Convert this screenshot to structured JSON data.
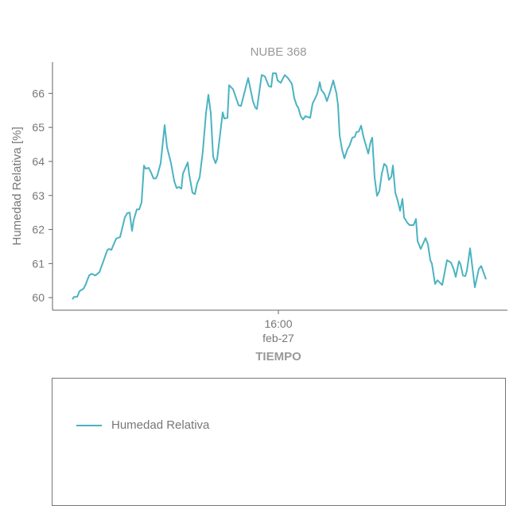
{
  "chart_data": {
    "type": "line",
    "title": "NUBE 368",
    "xlabel": "TIEMPO",
    "ylabel": "Humedad Relativa [%]",
    "x_unit": "minutes relative to 16:00 feb-27",
    "xlim": [
      -710,
      720
    ],
    "ylim": [
      59.63,
      66.92
    ],
    "xticks": [
      {
        "value": 0,
        "label": "16:00",
        "sublabel": "feb-27"
      }
    ],
    "yticks": [
      60,
      61,
      62,
      63,
      64,
      65,
      66
    ],
    "grid": false,
    "legend_position": "below",
    "series": [
      {
        "name": "Humedad Relativa",
        "color": "#4bb3c1",
        "x": [
          -647.5,
          -642.5,
          -632.5,
          -625,
          -612.5,
          -605,
          -595,
          -587.5,
          -575,
          -562.5,
          -550,
          -537.5,
          -532.5,
          -525,
          -510,
          -497.5,
          -482.5,
          -475,
          -467.5,
          -460,
          -455,
          -445,
          -437.5,
          -430,
          -422.5,
          -417.5,
          -407.5,
          -400,
          -392.5,
          -385,
          -380,
          -370,
          -357.5,
          -350,
          -337.5,
          -327.5,
          -320,
          -312.5,
          -305,
          -300,
          -285,
          -280,
          -270,
          -262.5,
          -255,
          -247.5,
          -237.5,
          -227.5,
          -220,
          -212.5,
          -205,
          -197.5,
          -192.5,
          -175,
          -170,
          -160,
          -155,
          -142.5,
          -125,
          -117.5,
          -95,
          -80,
          -72.5,
          -67.5,
          -52.5,
          -42.5,
          -30,
          -22.5,
          -17.5,
          -7.5,
          -2.5,
          7.5,
          20,
          30,
          42.5,
          50,
          57.5,
          62.5,
          70,
          77.5,
          85,
          100,
          107.5,
          117.5,
          122.5,
          130,
          135,
          145,
          152.5,
          162.5,
          172.5,
          182.5,
          187.5,
          192.5,
          200,
          207.5,
          217.5,
          222.5,
          232.5,
          240,
          245,
          252.5,
          260,
          267.5,
          282.5,
          290,
          295,
          302.5,
          310,
          317.5,
          325,
          332.5,
          340,
          347.5,
          355,
          360,
          367.5,
          375,
          382.5,
          390,
          395,
          405,
          412.5,
          425,
          432.5,
          437.5,
          447.5,
          462.5,
          470,
          477.5,
          482.5,
          492.5,
          500,
          515,
          530,
          542.5,
          550,
          557.5,
          567.5,
          572.5,
          580,
          587.5,
          592.5,
          602.5,
          617.5,
          630,
          637.5,
          652.5
        ],
        "y": [
          59.95,
          60.02,
          60.02,
          60.19,
          60.26,
          60.4,
          60.65,
          60.7,
          60.65,
          60.75,
          61.07,
          61.4,
          61.43,
          61.4,
          61.73,
          61.78,
          62.36,
          62.48,
          62.5,
          61.96,
          62.27,
          62.59,
          62.59,
          62.8,
          63.88,
          63.79,
          63.81,
          63.67,
          63.5,
          63.5,
          63.6,
          63.95,
          65.07,
          64.42,
          63.95,
          63.43,
          63.22,
          63.25,
          63.2,
          63.64,
          63.97,
          63.6,
          63.08,
          63.04,
          63.36,
          63.53,
          64.3,
          65.42,
          65.96,
          65.42,
          64.14,
          63.95,
          64.07,
          65.44,
          65.26,
          65.28,
          66.24,
          66.12,
          65.65,
          65.63,
          66.45,
          65.77,
          65.58,
          65.54,
          66.54,
          66.5,
          66.21,
          66.19,
          66.59,
          66.59,
          66.38,
          66.31,
          66.54,
          66.45,
          66.28,
          65.86,
          65.65,
          65.58,
          65.33,
          65.23,
          65.33,
          65.28,
          65.7,
          65.89,
          66.0,
          66.33,
          66.1,
          65.98,
          65.77,
          66.05,
          66.38,
          66.0,
          65.65,
          64.77,
          64.35,
          64.09,
          64.37,
          64.44,
          64.7,
          64.72,
          64.86,
          64.88,
          65.05,
          64.72,
          64.23,
          64.58,
          64.7,
          63.53,
          62.99,
          63.13,
          63.64,
          63.93,
          63.86,
          63.46,
          63.55,
          63.88,
          63.08,
          62.85,
          62.55,
          62.9,
          62.36,
          62.2,
          62.13,
          62.13,
          62.31,
          61.66,
          61.43,
          61.75,
          61.57,
          61.1,
          61.0,
          60.4,
          60.51,
          60.37,
          61.1,
          61.03,
          60.86,
          60.61,
          61.07,
          60.98,
          60.65,
          60.63,
          60.79,
          61.45,
          60.3,
          60.84,
          60.93,
          60.54
        ]
      }
    ]
  }
}
